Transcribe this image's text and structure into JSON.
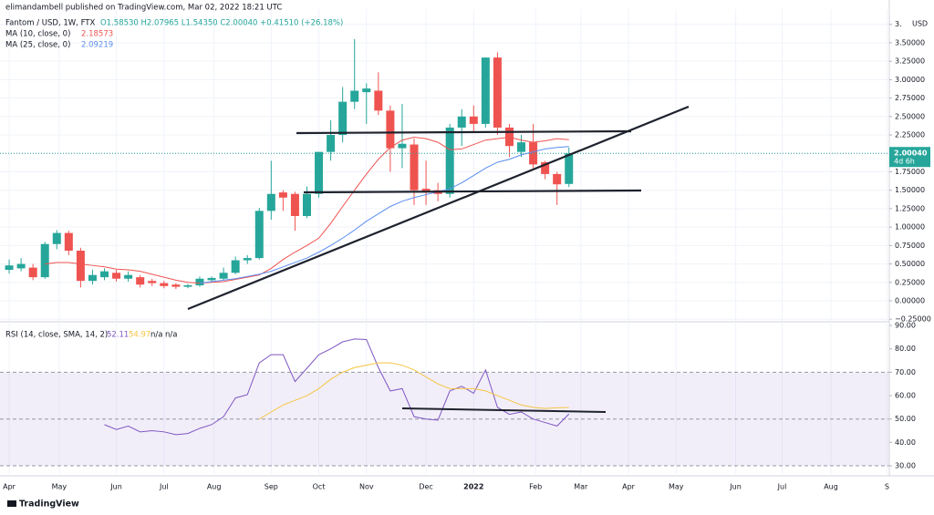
{
  "header": {
    "published": "elimandambell published on TradingView.com, Mar 02, 2022 18:21 UTC",
    "footer": "TradingView"
  },
  "chart_data": [
    {
      "type": "candlestick",
      "title": "Fantom / USD, 1W, FTX",
      "ohlc_label": "O1.58530 H2.07965 L1.54350 C2.00040 +0.41510 (+26.18%)",
      "currency": "USD",
      "categories": [
        null,
        null,
        null,
        null,
        null,
        null,
        null,
        null,
        null,
        null,
        null,
        null,
        null,
        null,
        null,
        null,
        null,
        null,
        null,
        null,
        null,
        null,
        null,
        null,
        null,
        null,
        null,
        null,
        null,
        null,
        null,
        null,
        null,
        null,
        null,
        null,
        null,
        null,
        null,
        null,
        null,
        null,
        null,
        null,
        null,
        null,
        null,
        null
      ],
      "open": [
        0.42,
        0.44,
        0.45,
        0.32,
        0.77,
        0.92,
        0.68,
        0.27,
        0.32,
        0.38,
        0.3,
        0.32,
        0.27,
        0.24,
        0.22,
        0.19,
        0.21,
        0.28,
        0.3,
        0.38,
        0.55,
        0.58,
        1.22,
        1.47,
        1.45,
        1.15,
        1.45,
        2.02,
        2.25,
        2.7,
        2.83,
        2.85,
        2.58,
        2.07,
        2.12,
        1.52,
        1.5,
        1.45,
        2.35,
        2.5,
        2.4,
        3.3,
        2.35,
        2.02,
        2.15,
        1.88,
        1.72,
        1.5853
      ],
      "high": [
        0.56,
        0.58,
        0.5,
        0.8,
        0.96,
        0.95,
        0.72,
        0.42,
        0.44,
        0.42,
        0.4,
        0.35,
        0.3,
        0.27,
        0.24,
        0.23,
        0.33,
        0.33,
        0.45,
        0.6,
        0.62,
        1.26,
        1.9,
        1.5,
        1.48,
        1.55,
        2.02,
        2.45,
        2.9,
        3.55,
        2.95,
        3.1,
        2.65,
        2.67,
        2.2,
        1.9,
        1.6,
        2.4,
        2.6,
        2.65,
        3.3,
        3.37,
        2.4,
        2.25,
        2.4,
        1.9,
        1.75,
        2.07965
      ],
      "low": [
        0.37,
        0.4,
        0.28,
        0.3,
        0.7,
        0.62,
        0.18,
        0.22,
        0.28,
        0.26,
        0.26,
        0.18,
        0.2,
        0.17,
        0.16,
        0.17,
        0.19,
        0.25,
        0.28,
        0.36,
        0.5,
        0.56,
        1.1,
        1.22,
        0.95,
        1.12,
        1.4,
        1.9,
        2.15,
        2.6,
        2.4,
        2.52,
        1.75,
        1.8,
        1.3,
        1.3,
        1.35,
        1.4,
        2.1,
        2.3,
        2.35,
        2.25,
        1.95,
        1.95,
        1.8,
        1.65,
        1.3,
        1.5435
      ],
      "close": [
        0.48,
        0.5,
        0.32,
        0.77,
        0.92,
        0.68,
        0.27,
        0.35,
        0.4,
        0.3,
        0.35,
        0.22,
        0.24,
        0.2,
        0.19,
        0.21,
        0.3,
        0.31,
        0.38,
        0.55,
        0.58,
        1.22,
        1.45,
        1.4,
        1.15,
        1.45,
        2.02,
        2.25,
        2.7,
        2.85,
        2.88,
        2.58,
        2.07,
        2.13,
        1.5,
        1.47,
        1.45,
        2.35,
        2.5,
        2.4,
        3.3,
        2.35,
        2.1,
        2.15,
        1.85,
        1.72,
        1.58,
        2.0004
      ],
      "up_color": "#26a69a",
      "down_color": "#ef5350",
      "series": [
        {
          "name": "MA (10, close, 0)",
          "color": "#ef5350",
          "values": [
            null,
            null,
            null,
            0.5,
            0.52,
            0.52,
            0.5,
            0.48,
            0.46,
            0.43,
            0.42,
            0.4,
            0.36,
            0.32,
            0.28,
            0.25,
            0.24,
            0.25,
            0.26,
            0.29,
            0.32,
            0.35,
            0.44,
            0.56,
            0.66,
            0.75,
            0.85,
            1.05,
            1.28,
            1.5,
            1.72,
            1.92,
            2.08,
            2.18,
            2.22,
            2.2,
            2.15,
            2.05,
            2.06,
            2.12,
            2.18,
            2.2,
            2.22,
            2.18,
            2.15,
            2.17,
            2.2,
            2.18573
          ]
        },
        {
          "name": "MA (25, close, 0)",
          "color": "#5b8def",
          "values": [
            null,
            null,
            null,
            null,
            null,
            null,
            null,
            null,
            null,
            null,
            null,
            null,
            null,
            null,
            null,
            null,
            0.24,
            0.26,
            0.28,
            0.3,
            0.33,
            0.36,
            0.4,
            0.46,
            0.52,
            0.58,
            0.66,
            0.75,
            0.85,
            0.96,
            1.08,
            1.18,
            1.28,
            1.35,
            1.4,
            1.44,
            1.48,
            1.52,
            1.6,
            1.7,
            1.8,
            1.88,
            1.92,
            1.98,
            2.02,
            2.06,
            2.08,
            2.09219
          ]
        }
      ],
      "last_price": {
        "value": 2.0004,
        "label": "2.00040",
        "countdown": "4d 6h"
      },
      "xlim": [
        -0.77,
        73.9
      ],
      "xticks": [
        {
          "value": 0,
          "label": "Apr"
        },
        {
          "value": 4.2,
          "label": "May"
        },
        {
          "value": 9,
          "label": "Jun"
        },
        {
          "value": 13,
          "label": "Jul"
        },
        {
          "value": 17.2,
          "label": "Aug"
        },
        {
          "value": 22,
          "label": "Sep"
        },
        {
          "value": 26,
          "label": "Oct"
        },
        {
          "value": 30,
          "label": "Nov"
        },
        {
          "value": 35,
          "label": "Dec"
        },
        {
          "value": 39,
          "label": "2022"
        },
        {
          "value": 44.2,
          "label": "Feb"
        },
        {
          "value": 48,
          "label": "Mar"
        },
        {
          "value": 52,
          "label": "Apr"
        },
        {
          "value": 56,
          "label": "May"
        },
        {
          "value": 61,
          "label": "Jun"
        },
        {
          "value": 64.9,
          "label": "Jul"
        },
        {
          "value": 69,
          "label": "Aug"
        },
        {
          "value": 73.7,
          "label": "S"
        }
      ],
      "ylim": [
        -0.272,
        3.957
      ],
      "yticks": [
        {
          "value": -0.25,
          "label": "−0.25000"
        },
        {
          "value": 0,
          "label": "0.00000"
        },
        {
          "value": 0.25,
          "label": "0.25000"
        },
        {
          "value": 0.5,
          "label": "0.50000"
        },
        {
          "value": 0.75,
          "label": "0.75000"
        },
        {
          "value": 1,
          "label": "1.00000"
        },
        {
          "value": 1.25,
          "label": "1.25000"
        },
        {
          "value": 1.5,
          "label": "1.50000"
        },
        {
          "value": 1.75,
          "label": "1.75000"
        },
        {
          "value": 2,
          "label": "2.00000"
        },
        {
          "value": 2.25,
          "label": "2.25000"
        },
        {
          "value": 2.5,
          "label": "2.50000"
        },
        {
          "value": 2.75,
          "label": "2.75000"
        },
        {
          "value": 3,
          "label": "3.00000"
        },
        {
          "value": 3.25,
          "label": "3.25000"
        },
        {
          "value": 3.5,
          "label": "3.50000"
        },
        {
          "value": 3.75,
          "label": "3."
        }
      ],
      "grid": true
    },
    {
      "type": "line",
      "title": "RSI (14, close, SMA, 14, 2)",
      "na_labels": [
        "n/a",
        "n/a"
      ],
      "series": [
        {
          "color": "#7e57c2",
          "values": [
            null,
            null,
            null,
            null,
            null,
            null,
            null,
            null,
            47.6,
            45.5,
            47,
            44.5,
            45,
            44.5,
            43.3,
            43.8,
            46,
            47.6,
            51,
            59,
            60.4,
            74,
            77.5,
            77.5,
            66,
            71.7,
            77.5,
            80,
            83,
            84.2,
            84,
            72,
            62,
            63,
            51,
            50,
            49.5,
            62,
            64,
            61,
            71,
            55,
            52,
            53,
            50,
            48.5,
            47,
            52.11
          ]
        },
        {
          "color": "#f5c542",
          "values": [
            null,
            null,
            null,
            null,
            null,
            null,
            null,
            null,
            null,
            null,
            null,
            null,
            null,
            null,
            null,
            null,
            null,
            null,
            null,
            null,
            null,
            50,
            53,
            56,
            58,
            60,
            63,
            67,
            70,
            72,
            73,
            74,
            74,
            73,
            71,
            68,
            65,
            63,
            63,
            63,
            62,
            60,
            58,
            56,
            55,
            54.5,
            54.8,
            54.97
          ]
        }
      ],
      "band": {
        "low": 30,
        "high": 70,
        "color": "#7e57c2"
      },
      "middle": 50,
      "ylim": [
        26.5,
        90.8
      ],
      "yticks": [
        {
          "value": 30,
          "label": "30.00"
        },
        {
          "value": 40,
          "label": "40.00"
        },
        {
          "value": 50,
          "label": "50.00"
        },
        {
          "value": 60,
          "label": "60.00"
        },
        {
          "value": 70,
          "label": "70.00"
        },
        {
          "value": 80,
          "label": "80.00"
        },
        {
          "value": 90,
          "label": "90.00"
        }
      ],
      "grid": true
    }
  ]
}
